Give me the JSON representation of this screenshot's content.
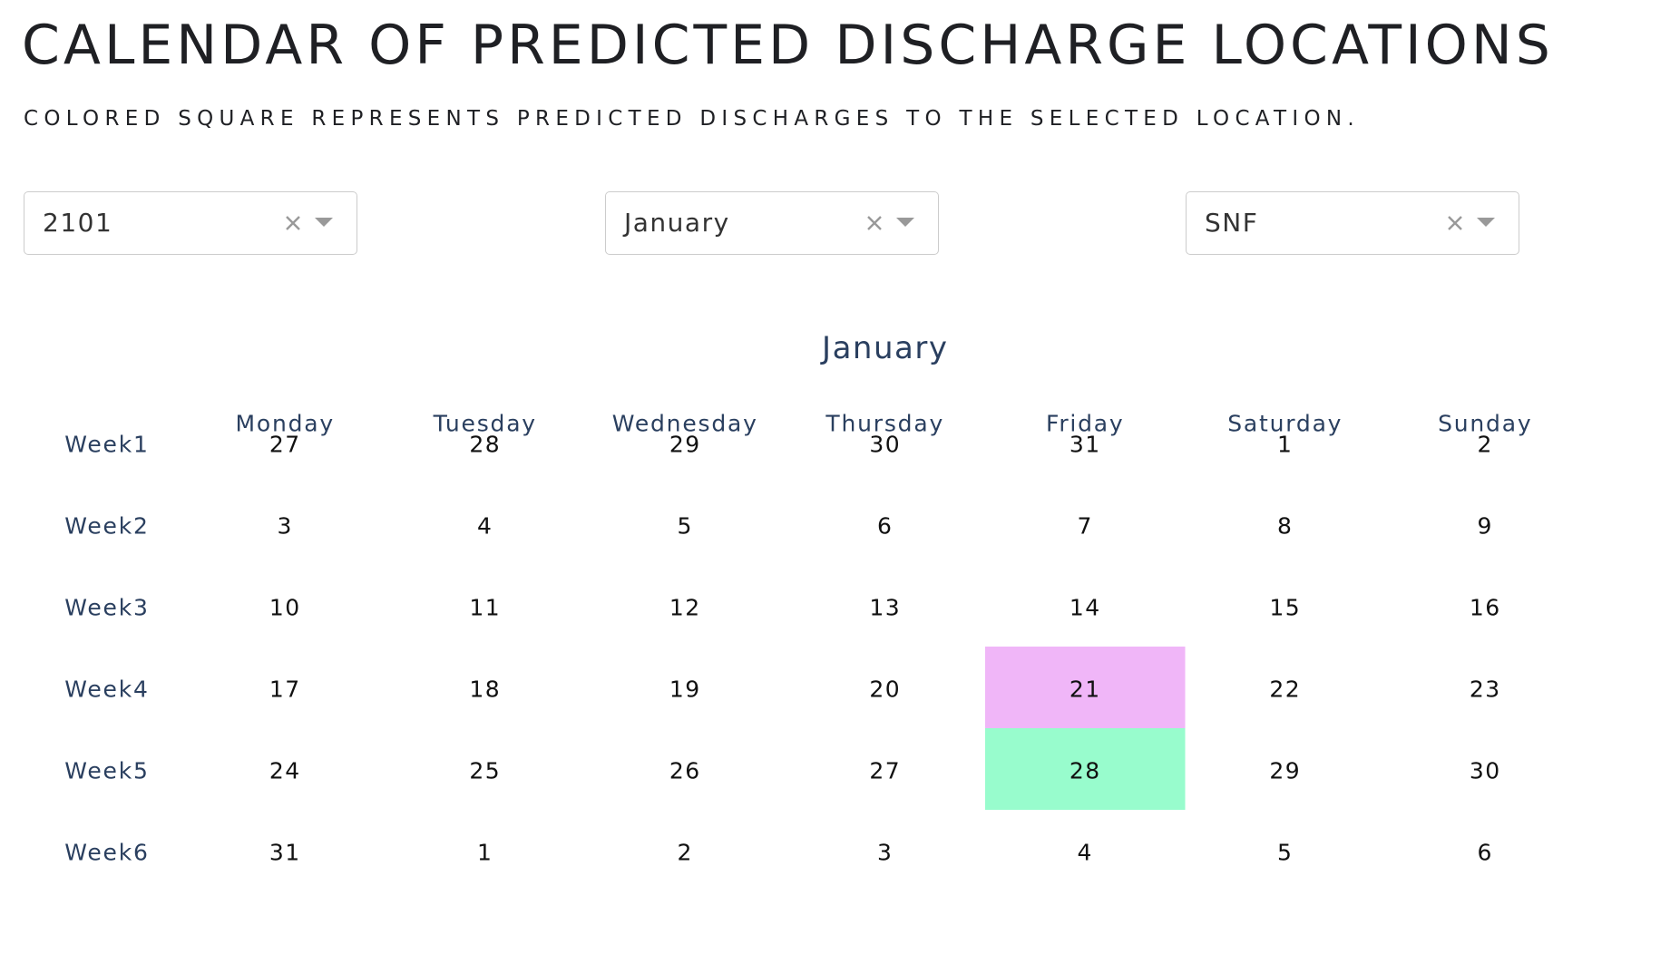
{
  "header": {
    "title": "CALENDAR OF PREDICTED DISCHARGE LOCATIONS",
    "subtitle": "COLORED SQUARE REPRESENTS PREDICTED DISCHARGES TO THE SELECTED LOCATION."
  },
  "filters": {
    "unit": {
      "value": "2101",
      "clear_icon": "close-icon",
      "open_icon": "chevron-down-icon"
    },
    "month": {
      "value": "January",
      "clear_icon": "close-icon",
      "open_icon": "chevron-down-icon"
    },
    "location": {
      "value": "SNF",
      "clear_icon": "close-icon",
      "open_icon": "chevron-down-icon"
    }
  },
  "colors": {
    "title_text": "#1f2024",
    "axis_text": "#2a3f5f",
    "cell_text": "#111111",
    "highlight_pink": "#f0b6f8",
    "highlight_green": "#98fccd"
  },
  "chart_data": {
    "type": "table",
    "title": "January",
    "columns": [
      "Monday",
      "Tuesday",
      "Wednesday",
      "Thursday",
      "Friday",
      "Saturday",
      "Sunday"
    ],
    "rows": [
      "Week1",
      "Week2",
      "Week3",
      "Week4",
      "Week5",
      "Week6"
    ],
    "values": [
      [
        27,
        28,
        29,
        30,
        31,
        1,
        2
      ],
      [
        3,
        4,
        5,
        6,
        7,
        8,
        9
      ],
      [
        10,
        11,
        12,
        13,
        14,
        15,
        16
      ],
      [
        17,
        18,
        19,
        20,
        21,
        22,
        23
      ],
      [
        24,
        25,
        26,
        27,
        28,
        29,
        30
      ],
      [
        31,
        1,
        2,
        3,
        4,
        5,
        6
      ]
    ],
    "highlighted": [
      {
        "row": 3,
        "col": 4,
        "color": "#f0b6f8"
      },
      {
        "row": 4,
        "col": 4,
        "color": "#98fccd"
      }
    ]
  }
}
